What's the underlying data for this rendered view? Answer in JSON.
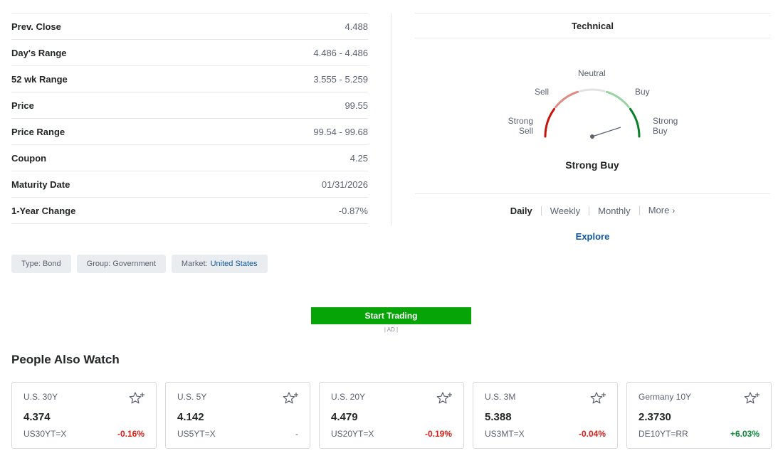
{
  "stats": [
    {
      "label": "Prev. Close",
      "value": "4.488"
    },
    {
      "label": "Day's Range",
      "value": "4.486 - 4.486"
    },
    {
      "label": "52 wk Range",
      "value": "3.555 - 5.259"
    },
    {
      "label": "Price",
      "value": "99.55"
    },
    {
      "label": "Price Range",
      "value": "99.54 - 99.68"
    },
    {
      "label": "Coupon",
      "value": "4.25"
    },
    {
      "label": "Maturity Date",
      "value": "01/31/2026"
    },
    {
      "label": "1-Year Change",
      "value": "-0.87%"
    }
  ],
  "technical": {
    "title": "Technical",
    "labels": {
      "neutral": "Neutral",
      "sell": "Sell",
      "buy": "Buy",
      "strong_sell": "Strong Sell",
      "strong_buy": "Strong Buy"
    },
    "result": "Strong Buy",
    "periods": [
      "Daily",
      "Weekly",
      "Monthly",
      "More"
    ],
    "active_period": "Daily",
    "explore_label": "Explore",
    "colors": {
      "strong_sell": "#c8120c",
      "sell": "#e08a86",
      "neutral": "#e0e2e4",
      "buy": "#9ad3a4",
      "strong_buy": "#0a7f2a",
      "needle": "#5b616e"
    }
  },
  "tags": [
    {
      "label": "Type:",
      "value": "Bond",
      "link": false
    },
    {
      "label": "Group:",
      "value": "Government",
      "link": false
    },
    {
      "label": "Market:",
      "value": "United States",
      "link": true
    }
  ],
  "ad": {
    "button_label": "Start Trading",
    "tag": "| AD |"
  },
  "people_also_watch": {
    "title": "People Also Watch",
    "cards": [
      {
        "name": "U.S. 30Y",
        "price": "4.374",
        "symbol": "US30YT=X",
        "change": "-0.16%",
        "direction": "neg"
      },
      {
        "name": "U.S. 5Y",
        "price": "4.142",
        "symbol": "US5YT=X",
        "change": "-",
        "direction": "flat"
      },
      {
        "name": "U.S. 20Y",
        "price": "4.479",
        "symbol": "US20YT=X",
        "change": "-0.19%",
        "direction": "neg"
      },
      {
        "name": "U.S. 3M",
        "price": "5.388",
        "symbol": "US3MT=X",
        "change": "-0.04%",
        "direction": "neg"
      },
      {
        "name": "Germany 10Y",
        "price": "2.3730",
        "symbol": "DE10YT=RR",
        "change": "+6.03%",
        "direction": "pos"
      }
    ]
  }
}
